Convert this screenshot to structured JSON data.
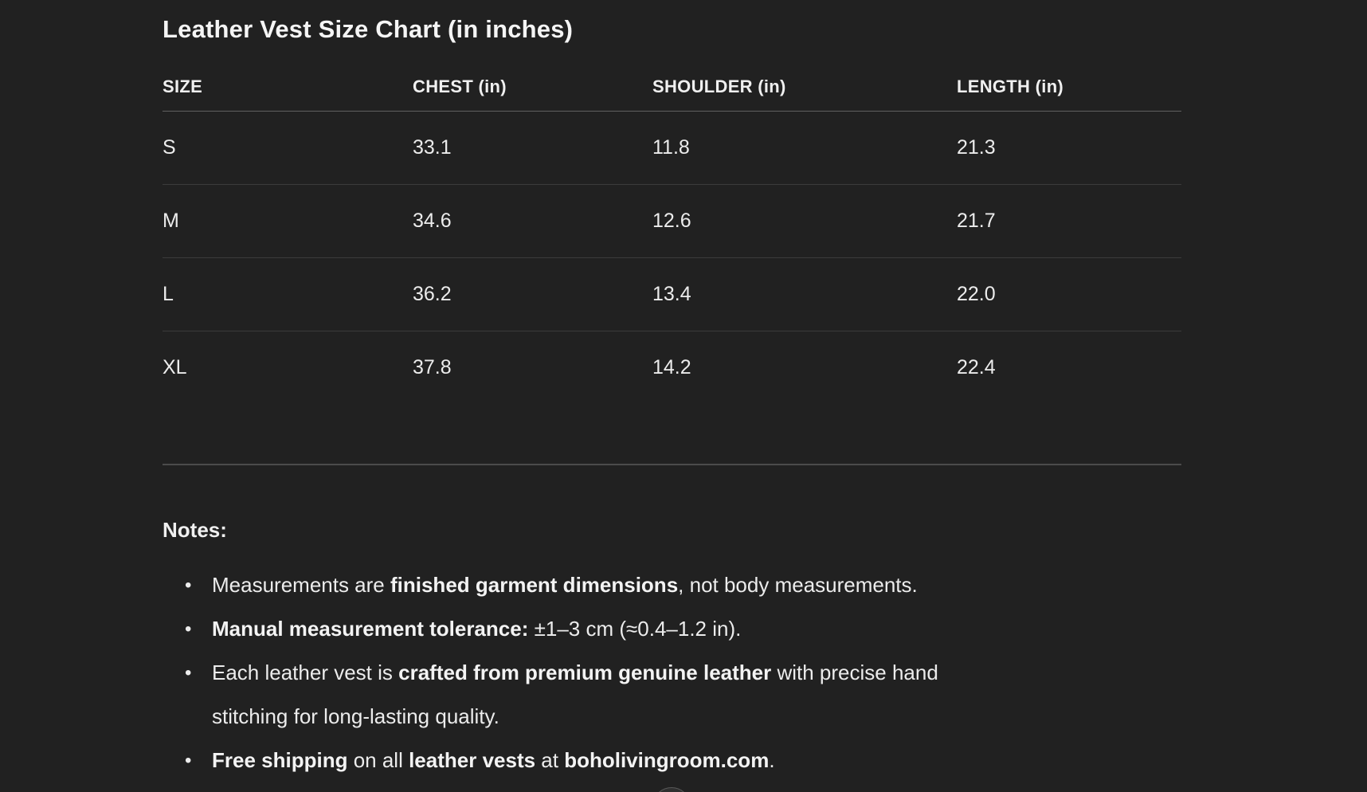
{
  "page": {
    "background_color": "#212121",
    "text_color": "#ececec"
  },
  "title": "Leather Vest Size Chart (in inches)",
  "table": {
    "columns": [
      "SIZE",
      "CHEST (in)",
      "SHOULDER (in)",
      "LENGTH (in)"
    ],
    "rows": [
      {
        "cells": [
          "S",
          "33.1",
          "11.8",
          "21.3"
        ]
      },
      {
        "cells": [
          "M",
          "34.6",
          "12.6",
          "21.7"
        ]
      },
      {
        "cells": [
          "L",
          "36.2",
          "13.4",
          "22.0"
        ]
      },
      {
        "cells": [
          "XL",
          "37.8",
          "14.2",
          "22.4"
        ]
      }
    ]
  },
  "notes": {
    "heading": "Notes:",
    "items": [
      [
        {
          "text": "Measurements are ",
          "bold": false
        },
        {
          "text": "finished garment dimensions",
          "bold": true
        },
        {
          "text": ", not body measurements.",
          "bold": false
        }
      ],
      [
        {
          "text": "Manual measurement tolerance:",
          "bold": true
        },
        {
          "text": " ±1–3 cm (≈0.4–1.2 in).",
          "bold": false
        }
      ],
      [
        {
          "text": "Each leather vest is ",
          "bold": false
        },
        {
          "text": "crafted from premium genuine leather",
          "bold": true
        },
        {
          "text": " with precise hand stitching for long-lasting quality.",
          "bold": false
        }
      ],
      [
        {
          "text": "Free shipping",
          "bold": true
        },
        {
          "text": " on all ",
          "bold": false
        },
        {
          "text": "leather vests",
          "bold": true
        },
        {
          "text": " at ",
          "bold": false
        },
        {
          "text": "boholivingroom.com",
          "bold": true
        },
        {
          "text": ".",
          "bold": false
        }
      ]
    ],
    "bullet_glyph": "•"
  }
}
